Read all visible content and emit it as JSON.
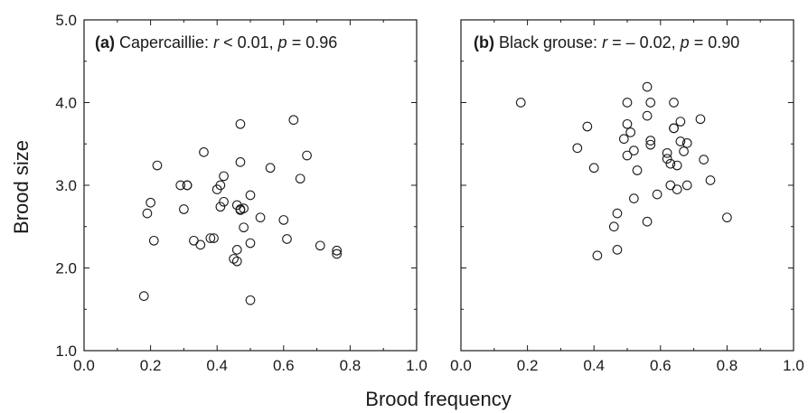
{
  "figure": {
    "xlabel": "Brood frequency",
    "ylabel": "Brood size"
  },
  "chart_data": [
    {
      "type": "scatter",
      "panel_label": "(a)",
      "title_name": "Capercaillie:",
      "stat_r_symbol": "r",
      "stat_r_text": " < 0.01,",
      "stat_p_symbol": "p",
      "stat_p_text": " = 0.96",
      "xlim": [
        0.0,
        1.0
      ],
      "ylim": [
        1.0,
        5.0
      ],
      "x_ticks": [
        "0.0",
        "0.2",
        "0.4",
        "0.6",
        "0.8",
        "1.0"
      ],
      "y_ticks": [
        "1.0",
        "2.0",
        "3.0",
        "4.0",
        "5.0"
      ],
      "grid": false,
      "marker": "open-circle",
      "x": [
        0.18,
        0.19,
        0.2,
        0.21,
        0.22,
        0.29,
        0.3,
        0.31,
        0.31,
        0.33,
        0.35,
        0.36,
        0.38,
        0.39,
        0.4,
        0.41,
        0.41,
        0.42,
        0.42,
        0.45,
        0.46,
        0.46,
        0.46,
        0.47,
        0.47,
        0.47,
        0.47,
        0.48,
        0.48,
        0.5,
        0.5,
        0.5,
        0.53,
        0.56,
        0.6,
        0.61,
        0.63,
        0.65,
        0.67,
        0.71,
        0.76,
        0.76
      ],
      "y": [
        1.66,
        2.66,
        2.79,
        2.33,
        3.24,
        3.0,
        2.71,
        3.0,
        3.0,
        2.33,
        2.28,
        3.4,
        2.36,
        2.36,
        2.95,
        2.74,
        3.0,
        2.8,
        3.11,
        2.11,
        2.08,
        2.22,
        2.76,
        3.28,
        2.7,
        2.71,
        3.74,
        2.49,
        2.72,
        2.88,
        1.61,
        2.3,
        2.61,
        3.21,
        2.58,
        2.35,
        3.79,
        3.08,
        3.36,
        2.27,
        2.21,
        2.17
      ]
    },
    {
      "type": "scatter",
      "panel_label": "(b)",
      "title_name": "Black grouse:",
      "stat_r_symbol": "r",
      "stat_r_text": " = – 0.02,",
      "stat_p_symbol": "p",
      "stat_p_text": " = 0.90",
      "xlim": [
        0.0,
        1.0
      ],
      "ylim": [
        1.0,
        5.0
      ],
      "x_ticks": [
        "0.0",
        "0.2",
        "0.4",
        "0.6",
        "0.8",
        "1.0"
      ],
      "y_ticks": [
        "",
        "",
        "",
        "",
        ""
      ],
      "grid": false,
      "marker": "open-circle",
      "x": [
        0.18,
        0.35,
        0.38,
        0.4,
        0.41,
        0.46,
        0.47,
        0.47,
        0.49,
        0.5,
        0.5,
        0.5,
        0.51,
        0.52,
        0.52,
        0.53,
        0.56,
        0.56,
        0.56,
        0.57,
        0.57,
        0.57,
        0.59,
        0.62,
        0.62,
        0.63,
        0.63,
        0.64,
        0.64,
        0.64,
        0.65,
        0.65,
        0.66,
        0.66,
        0.67,
        0.68,
        0.68,
        0.72,
        0.73,
        0.75,
        0.8
      ],
      "y": [
        4.0,
        3.45,
        3.71,
        3.21,
        2.15,
        2.5,
        2.22,
        2.66,
        3.56,
        3.36,
        3.74,
        4.0,
        3.64,
        2.84,
        3.42,
        3.18,
        4.19,
        3.84,
        2.56,
        3.49,
        3.54,
        4.0,
        2.89,
        3.39,
        3.32,
        3.26,
        3.0,
        3.69,
        4.0,
        3.69,
        3.24,
        2.95,
        3.53,
        3.77,
        3.41,
        3.51,
        3.0,
        3.8,
        3.31,
        3.06,
        2.61
      ]
    }
  ]
}
